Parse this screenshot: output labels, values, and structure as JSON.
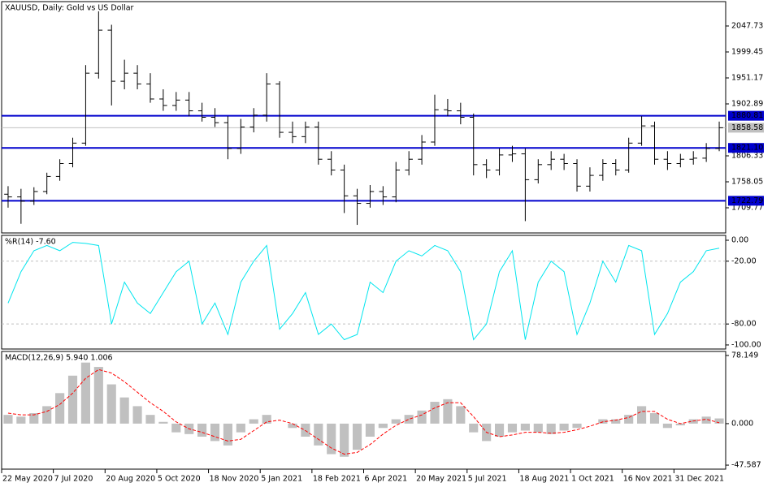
{
  "chart_data": [
    {
      "type": "ohlc",
      "title": "XAUUSD, Daily:  Gold vs US Dollar",
      "color": "#000000",
      "categories": [
        "22 May 2020",
        null,
        null,
        null,
        "7 Jul 2020",
        null,
        null,
        null,
        "20 Aug 2020",
        null,
        null,
        null,
        "5 Oct 2020",
        null,
        null,
        null,
        "18 Nov 2020",
        null,
        null,
        null,
        "5 Jan 2021",
        null,
        null,
        null,
        "18 Feb 2021",
        null,
        null,
        null,
        "6 Apr 2021",
        null,
        null,
        null,
        "20 May 2021",
        null,
        null,
        null,
        "5 Jul 2021",
        null,
        null,
        null,
        "18 Aug 2021",
        null,
        null,
        null,
        "1 Oct 2021",
        null,
        null,
        null,
        "16 Nov 2021",
        null,
        null,
        null,
        "31 Dec 2021",
        null,
        null,
        null
      ],
      "open": [
        1735,
        1730,
        1722,
        1740,
        1768,
        1792,
        1830,
        1960,
        2040,
        1945,
        1960,
        1940,
        1912,
        1900,
        1910,
        1890,
        1878,
        1868,
        1820,
        1860,
        1882,
        1940,
        1850,
        1842,
        1860,
        1800,
        1780,
        1732,
        1718,
        1740,
        1730,
        1780,
        1800,
        1832,
        1892,
        1890,
        1878,
        1790,
        1780,
        1808,
        1810,
        1762,
        1790,
        1800,
        1792,
        1750,
        1770,
        1792,
        1780,
        1830,
        1862,
        1800,
        1792,
        1800,
        1802,
        1820
      ],
      "high": [
        1750,
        1745,
        1748,
        1775,
        1800,
        1840,
        1975,
        2075,
        2050,
        1985,
        1975,
        1960,
        1930,
        1925,
        1925,
        1905,
        1895,
        1880,
        1875,
        1895,
        1960,
        1945,
        1870,
        1870,
        1870,
        1815,
        1790,
        1745,
        1752,
        1750,
        1795,
        1815,
        1845,
        1920,
        1912,
        1905,
        1885,
        1800,
        1820,
        1825,
        1820,
        1800,
        1815,
        1810,
        1800,
        1785,
        1800,
        1800,
        1840,
        1880,
        1870,
        1815,
        1810,
        1815,
        1830,
        1870
      ],
      "low": [
        1710,
        1680,
        1715,
        1735,
        1760,
        1785,
        1825,
        1950,
        1900,
        1930,
        1930,
        1905,
        1890,
        1890,
        1880,
        1870,
        1860,
        1800,
        1810,
        1850,
        1870,
        1840,
        1830,
        1830,
        1790,
        1770,
        1700,
        1678,
        1710,
        1715,
        1720,
        1770,
        1790,
        1825,
        1880,
        1865,
        1770,
        1765,
        1770,
        1795,
        1685,
        1755,
        1780,
        1780,
        1740,
        1740,
        1760,
        1770,
        1775,
        1825,
        1790,
        1780,
        1785,
        1790,
        1795,
        1815
      ],
      "close": [
        1730,
        1722,
        1740,
        1768,
        1792,
        1830,
        1960,
        2040,
        1945,
        1960,
        1940,
        1912,
        1900,
        1910,
        1890,
        1878,
        1868,
        1820,
        1860,
        1882,
        1940,
        1850,
        1842,
        1860,
        1800,
        1780,
        1732,
        1718,
        1740,
        1730,
        1780,
        1800,
        1832,
        1892,
        1890,
        1878,
        1790,
        1780,
        1808,
        1810,
        1762,
        1790,
        1800,
        1792,
        1750,
        1770,
        1792,
        1780,
        1830,
        1862,
        1800,
        1792,
        1800,
        1802,
        1820,
        1858.58
      ],
      "ylim": [
        1663,
        2093
      ],
      "yticks": [
        2047.73,
        1999.45,
        1951.17,
        1902.89,
        1806.33,
        1758.05,
        1709.77
      ],
      "levels": [
        1880.81,
        {
          "value": 1821.1,
          "label": "1821.10"
        },
        1722.79
      ],
      "level_color": "#0000cd"
    },
    {
      "type": "line",
      "title": "%R(14) -7.60",
      "color": "#00e5ee",
      "values": [
        -60,
        -30,
        -10,
        -5,
        -10,
        -2,
        -3,
        -5,
        -80,
        -40,
        -60,
        -70,
        -50,
        -30,
        -20,
        -80,
        -60,
        -90,
        -40,
        -20,
        -5,
        -85,
        -70,
        -50,
        -90,
        -80,
        -95,
        -90,
        -40,
        -50,
        -20,
        -10,
        -15,
        -5,
        -10,
        -30,
        -95,
        -80,
        -30,
        -10,
        -95,
        -40,
        -20,
        -30,
        -90,
        -60,
        -20,
        -40,
        -5,
        -10,
        -90,
        -70,
        -40,
        -30,
        -10,
        -7.6
      ],
      "ylim": [
        -103.9,
        4.65
      ],
      "yticks": [
        {
          "value": 0,
          "label": "0.00"
        },
        {
          "value": -20,
          "label": "-20.00"
        },
        {
          "value": -80,
          "label": "-80.00"
        },
        {
          "value": -100,
          "label": "-100.00"
        }
      ],
      "levels": [
        -20,
        -80
      ]
    },
    {
      "type": "macd",
      "title": "MACD(12,26,9) 5.940 1.006",
      "histogram": [
        10,
        8,
        12,
        20,
        35,
        55,
        70,
        65,
        45,
        30,
        20,
        10,
        2,
        -10,
        -12,
        -15,
        -20,
        -25,
        -10,
        5,
        10,
        0,
        -5,
        -15,
        -25,
        -35,
        -38,
        -30,
        -15,
        -5,
        5,
        10,
        15,
        25,
        28,
        20,
        -10,
        -20,
        -15,
        -10,
        -8,
        -10,
        -12,
        -8,
        -5,
        0,
        5,
        5,
        10,
        20,
        12,
        -5,
        -2,
        5,
        8,
        5.94
      ],
      "signal": [
        12,
        10,
        10,
        14,
        22,
        35,
        52,
        62,
        58,
        48,
        36,
        24,
        14,
        2,
        -6,
        -10,
        -15,
        -20,
        -18,
        -8,
        2,
        4,
        0,
        -8,
        -18,
        -28,
        -35,
        -33,
        -24,
        -12,
        -2,
        5,
        10,
        18,
        24,
        24,
        8,
        -10,
        -15,
        -13,
        -10,
        -10,
        -11,
        -10,
        -7,
        -3,
        2,
        4,
        7,
        14,
        14,
        5,
        0,
        3,
        5,
        1.006
      ],
      "histogram_color": "#c0c0c0",
      "signal_color": "#ff0000",
      "ylim": [
        -52.2,
        82.75
      ],
      "yticks": [
        78.149,
        {
          "value": 0,
          "label": "0.000"
        },
        -47.587
      ]
    }
  ]
}
